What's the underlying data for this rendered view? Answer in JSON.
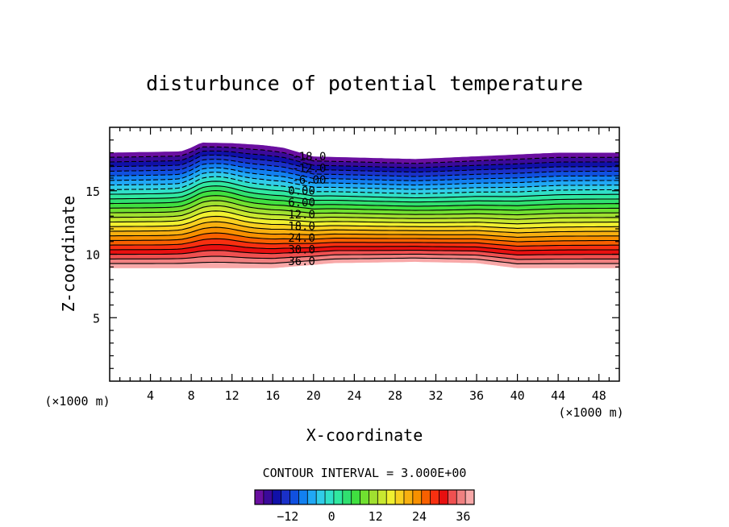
{
  "chart_data": {
    "type": "contour",
    "title": "disturbunce of potential temperature",
    "xlabel": "X-coordinate",
    "ylabel": "Z-coordinate",
    "x_unit": "(×1000 m)",
    "y_unit": "(×1000 m)",
    "xlim": [
      0,
      50
    ],
    "ylim": [
      0,
      20
    ],
    "x_ticks": [
      4,
      8,
      12,
      16,
      20,
      24,
      28,
      32,
      36,
      40,
      44,
      48
    ],
    "y_ticks": [
      5,
      10,
      15
    ],
    "contour_interval_text": "CONTOUR INTERVAL = 3.000E+00",
    "contour_interval": 3,
    "field_range": [
      -21,
      39
    ],
    "contour_labels": [
      "-18.0",
      "-12.0",
      "-6.00",
      "0.00",
      "6.00",
      "12.0",
      "18.0",
      "24.0",
      "30.0",
      "36.0"
    ],
    "colorbar": {
      "min": -21,
      "max": 39,
      "ticks": [
        -12,
        0,
        12,
        24,
        36
      ],
      "colors": [
        "#6a0fa0",
        "#3a0a9a",
        "#1010a8",
        "#1a30c8",
        "#1050e0",
        "#1280f0",
        "#20a8f5",
        "#30cce8",
        "#30e0c8",
        "#30e8a0",
        "#30e070",
        "#40e040",
        "#70e030",
        "#a0e030",
        "#c8e830",
        "#f0f030",
        "#f8d020",
        "#f8b010",
        "#f89000",
        "#f86000",
        "#f83010",
        "#e81010",
        "#f05050",
        "#f08080",
        "#f8a8a8"
      ]
    },
    "data_top_boundary": [
      {
        "x": 0,
        "z": 18.0
      },
      {
        "x": 7,
        "z": 18.1
      },
      {
        "x": 8,
        "z": 18.4
      },
      {
        "x": 9,
        "z": 18.8
      },
      {
        "x": 12,
        "z": 18.75
      },
      {
        "x": 15,
        "z": 18.6
      },
      {
        "x": 17,
        "z": 18.4
      },
      {
        "x": 20,
        "z": 17.7
      },
      {
        "x": 30,
        "z": 17.5
      },
      {
        "x": 44,
        "z": 18.0
      },
      {
        "x": 50,
        "z": 18.0
      }
    ],
    "data_bottom_boundary": [
      {
        "x": 0,
        "z": 8.9
      },
      {
        "x": 16,
        "z": 8.9
      },
      {
        "x": 22,
        "z": 9.3
      },
      {
        "x": 30,
        "z": 9.4
      },
      {
        "x": 36,
        "z": 9.3
      },
      {
        "x": 40,
        "z": 8.9
      },
      {
        "x": 50,
        "z": 8.9
      }
    ]
  }
}
